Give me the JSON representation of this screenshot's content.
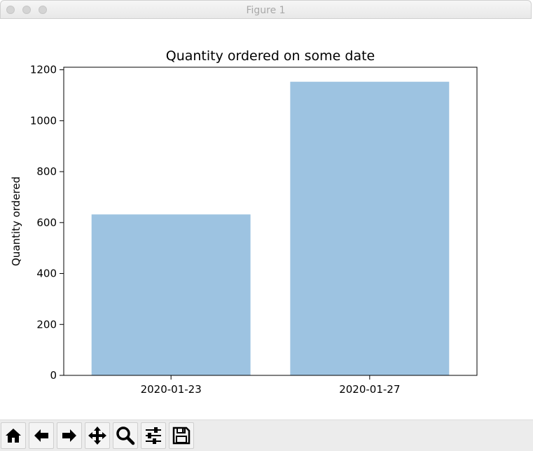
{
  "window": {
    "title": "Figure 1"
  },
  "chart_data": {
    "type": "bar",
    "title": "Quantity ordered on some date",
    "xlabel": "",
    "ylabel": "Quantity ordered",
    "categories": [
      "2020-01-23",
      "2020-01-27"
    ],
    "values": [
      632,
      1153
    ],
    "ylim": [
      0,
      1210
    ],
    "yticks": [
      0,
      200,
      400,
      600,
      800,
      1000,
      1200
    ],
    "bar_color": "#9dc3e1",
    "grid": false
  },
  "toolbar": {
    "buttons": [
      {
        "name": "home-button",
        "icon": "home-icon"
      },
      {
        "name": "back-button",
        "icon": "arrow-left-icon"
      },
      {
        "name": "forward-button",
        "icon": "arrow-right-icon"
      },
      {
        "name": "pan-button",
        "icon": "move-icon"
      },
      {
        "name": "zoom-button",
        "icon": "magnifier-icon"
      },
      {
        "name": "configure-subplots-button",
        "icon": "sliders-icon"
      },
      {
        "name": "save-button",
        "icon": "floppy-disk-icon"
      }
    ]
  }
}
